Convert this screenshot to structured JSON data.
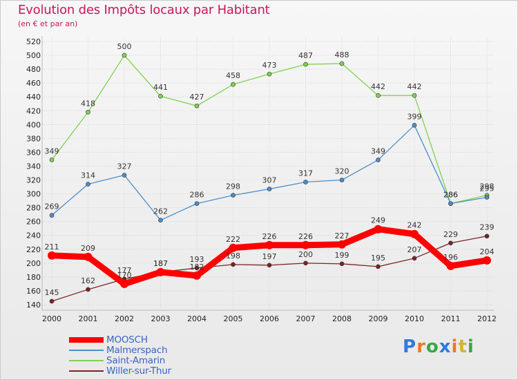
{
  "chart_data": {
    "type": "line",
    "title": "Evolution des Impôts locaux par Habitant",
    "subtitle": "(en € et par an)",
    "xlabel": "",
    "ylabel": "",
    "categories": [
      "2000",
      "2001",
      "2002",
      "2003",
      "2004",
      "2005",
      "2006",
      "2007",
      "2008",
      "2009",
      "2010",
      "2011",
      "2012"
    ],
    "ylim": [
      140,
      520
    ],
    "ystep": 20,
    "grid": true,
    "series": [
      {
        "name": "MOOSCH",
        "color": "#ff0000",
        "values": [
          211,
          209,
          170,
          187,
          182,
          222,
          226,
          226,
          227,
          249,
          242,
          196,
          204
        ],
        "labels": [
          "211",
          "209",
          "170",
          "187",
          "182",
          "222",
          "226",
          "226",
          "227",
          "249",
          "242",
          "196",
          "204"
        ]
      },
      {
        "name": "Malmerspach",
        "color": "#4d8ec9",
        "values": [
          269,
          314,
          327,
          262,
          286,
          298,
          307,
          317,
          320,
          349,
          399,
          286,
          295
        ],
        "labels": [
          "269",
          "314",
          "327",
          "262",
          "286",
          "298",
          "307",
          "317",
          "320",
          "349",
          "399",
          "286",
          "295"
        ]
      },
      {
        "name": "Saint-Amarin",
        "color": "#7fd14f",
        "values": [
          349,
          418,
          500,
          441,
          427,
          458,
          473,
          487,
          488,
          442,
          442,
          286,
          298
        ],
        "labels": [
          "349",
          "418",
          "500",
          "441",
          "427",
          "458",
          "473",
          "487",
          "488",
          "442",
          "442",
          "286",
          "298"
        ]
      },
      {
        "name": "Willer-sur-Thur",
        "color": "#7a2424",
        "values": [
          145,
          162,
          177,
          187,
          193,
          198,
          197,
          200,
          199,
          195,
          207,
          229,
          239
        ],
        "labels": [
          "145",
          "162",
          "177",
          "187",
          "193",
          "198",
          "197",
          "200",
          "199",
          "195",
          "207",
          "229",
          "239"
        ]
      }
    ]
  },
  "logo": {
    "letters": [
      "P",
      "r",
      "o",
      "x",
      "i",
      "t",
      "i"
    ]
  },
  "colors": {
    "title": "#c2185b",
    "grid": "#d2d2d2",
    "axis": "#666666"
  }
}
